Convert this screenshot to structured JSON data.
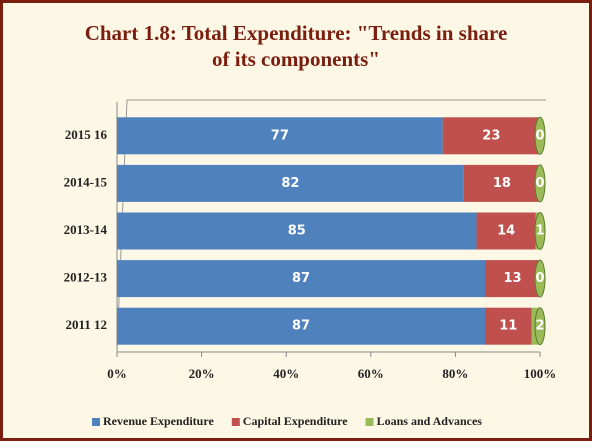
{
  "chart_data": {
    "type": "bar",
    "orientation": "horizontal",
    "stacked": true,
    "title": "Chart 1.8: Total Expenditure: \"Trends in share\nof its components\"",
    "categories": [
      "2015 16",
      "2014-15",
      "2013-14",
      "2012-13",
      "2011 12"
    ],
    "series": [
      {
        "name": "Revenue Expenditure",
        "color": "#4f81bd",
        "values": [
          77,
          82,
          85,
          87,
          87
        ]
      },
      {
        "name": "Capital Expenditure",
        "color": "#c0504d",
        "values": [
          23,
          18,
          14,
          13,
          11
        ]
      },
      {
        "name": "Loans and Advances",
        "color": "#9bbb59",
        "values": [
          0,
          0,
          1,
          0,
          2
        ]
      }
    ],
    "xlim": [
      0,
      100
    ],
    "xticks": [
      {
        "value": 0,
        "label": "0%"
      },
      {
        "value": 20,
        "label": "20%"
      },
      {
        "value": 40,
        "label": "40%"
      },
      {
        "value": 60,
        "label": "60%"
      },
      {
        "value": 80,
        "label": "80%"
      },
      {
        "value": 100,
        "label": "100%"
      }
    ],
    "legend": "bottom"
  }
}
